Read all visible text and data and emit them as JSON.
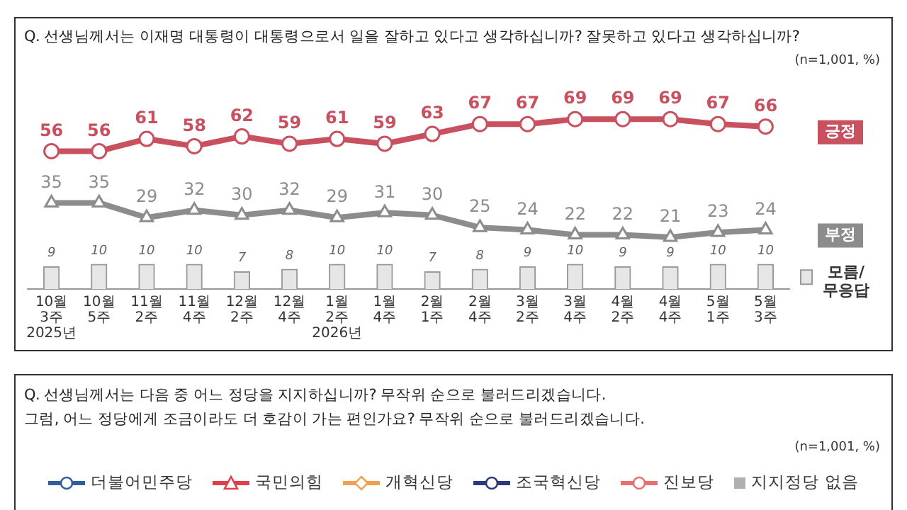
{
  "chart_data": [
    {
      "type": "line",
      "title": "Q. 선생님께서는 이재명 대통령이 대통령으로서 일을 잘하고 있다고 생각하십니까? 잘못하고 있다고 생각하십니까?",
      "subtitle": "(n=1,001, %)",
      "categories": [
        "10월 3주\n2025년",
        "10월 5주",
        "11월 2주",
        "11월 4주",
        "12월 2주",
        "12월 4주",
        "1월 2주\n2026년",
        "1월 4주",
        "2월 1주",
        "2월 4주",
        "3월 2주",
        "3월 4주",
        "4월 2주",
        "4월 4주",
        "5월 1주",
        "5월 3주"
      ],
      "series": [
        {
          "name": "긍정",
          "type": "line",
          "color": "#c9505f",
          "marker": "circle",
          "values": [
            56,
            56,
            61,
            58,
            62,
            59,
            61,
            59,
            63,
            67,
            67,
            69,
            69,
            69,
            67,
            66
          ]
        },
        {
          "name": "부정",
          "type": "line",
          "color": "#8c8c8c",
          "marker": "triangle",
          "values": [
            35,
            35,
            29,
            32,
            30,
            32,
            29,
            31,
            30,
            25,
            24,
            22,
            22,
            21,
            23,
            24
          ]
        },
        {
          "name": "모름/\n무응답",
          "type": "bar",
          "color": "#e6e6e6",
          "values": [
            9,
            10,
            10,
            10,
            7,
            8,
            10,
            10,
            7,
            8,
            9,
            10,
            9,
            9,
            10,
            10
          ]
        }
      ],
      "data_labels": true,
      "legend": "right",
      "tick_labels": "x"
    },
    {
      "type": "other",
      "title": "Q. 선생님께서는 다음 중 어느 정당을 지지하십니까? 무작위 순으로 불러드리겠습니다.\n그럼, 어느 정당에게 조금이라도 더 호감이 가는 편인가요? 무작위 순으로 불러드리겠습니다.",
      "subtitle": "(n=1,001, %)",
      "legend": "top",
      "series": [
        {
          "name": "더불어민주당",
          "type": "line",
          "marker": "circle",
          "color": "#2f5f9e"
        },
        {
          "name": "국민의힘",
          "type": "line",
          "marker": "triangle",
          "color": "#e0404a"
        },
        {
          "name": "개혁신당",
          "type": "line",
          "marker": "diamond",
          "color": "#f0a050"
        },
        {
          "name": "조국혁신당",
          "type": "line",
          "marker": "circle",
          "color": "#2a3a7a"
        },
        {
          "name": "진보당",
          "type": "line",
          "marker": "circle",
          "color": "#e87070"
        },
        {
          "name": "지지정당 없음",
          "type": "bar",
          "color": "#b0b0b0"
        }
      ]
    }
  ]
}
